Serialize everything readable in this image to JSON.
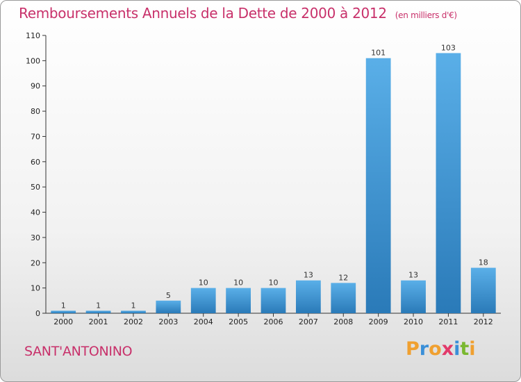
{
  "header": {
    "title": "Remboursements Annuels de la Dette de 2000 à 2012",
    "unit": "(en milliers d'€)"
  },
  "footer": {
    "city": "SANT'ANTONINO",
    "logo": "Proxiti"
  },
  "colors": {
    "title": "#c8306a",
    "bar_top": "#5aafe8",
    "bar_bottom": "#2a7ab8",
    "logo_letters": [
      "#f0a030",
      "#3a8fd8",
      "#f0a030",
      "#e23a6a",
      "#3a8fd8",
      "#7ab830",
      "#f0a030"
    ]
  },
  "chart_data": {
    "type": "bar",
    "categories": [
      "2000",
      "2001",
      "2002",
      "2003",
      "2004",
      "2005",
      "2006",
      "2007",
      "2008",
      "2009",
      "2010",
      "2011",
      "2012"
    ],
    "values": [
      1,
      1,
      1,
      5,
      10,
      10,
      10,
      13,
      12,
      101,
      13,
      103,
      18
    ],
    "title": "Remboursements Annuels de la Dette de 2000 à 2012",
    "xlabel": "",
    "ylabel": "",
    "ylim": [
      0,
      110
    ],
    "yticks": [
      0,
      10,
      20,
      30,
      40,
      50,
      60,
      70,
      80,
      90,
      100,
      110
    ],
    "grid": false,
    "legend": "none"
  }
}
